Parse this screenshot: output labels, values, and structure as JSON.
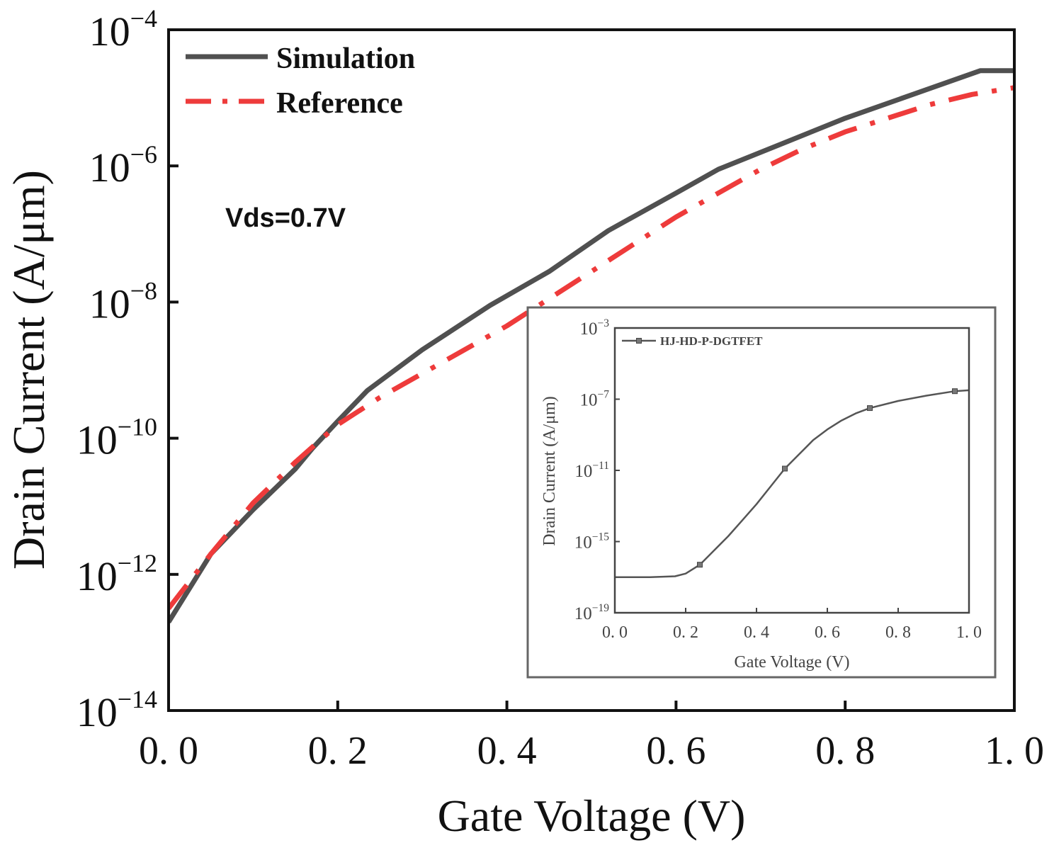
{
  "chart_data": [
    {
      "type": "line",
      "title": "",
      "xlabel": "Gate Voltage (V)",
      "ylabel": "Drain Current (A/μm)",
      "xlim": [
        0.0,
        1.0
      ],
      "ylim_log10": [
        -14,
        -4
      ],
      "xticks": [
        "0. 0",
        "0. 2",
        "0. 4",
        "0. 6",
        "0. 8",
        "1. 0"
      ],
      "xtick_values": [
        0.0,
        0.2,
        0.4,
        0.6,
        0.8,
        1.0
      ],
      "yticks": [
        {
          "base": "10",
          "exp": "−14",
          "log": -14
        },
        {
          "base": "10",
          "exp": "−12",
          "log": -12
        },
        {
          "base": "10",
          "exp": "−10",
          "log": -10
        },
        {
          "base": "10",
          "exp": "−8",
          "log": -8
        },
        {
          "base": "10",
          "exp": "−6",
          "log": -6
        },
        {
          "base": "10",
          "exp": "−4",
          "log": -4
        }
      ],
      "annotation": "Vds=0.7V",
      "legend_position": "top-left",
      "series": [
        {
          "name": "Simulation",
          "color": "#505050",
          "style": "solid",
          "x": [
            0.0,
            0.05,
            0.1,
            0.15,
            0.17,
            0.2,
            0.235,
            0.3,
            0.38,
            0.45,
            0.52,
            0.6,
            0.65,
            0.73,
            0.8,
            0.88,
            0.96,
            1.0
          ],
          "log10_y": [
            -12.7,
            -11.7,
            -11.05,
            -10.45,
            -10.15,
            -9.75,
            -9.3,
            -8.7,
            -8.05,
            -7.55,
            -6.95,
            -6.4,
            -6.05,
            -5.65,
            -5.3,
            -4.95,
            -4.6,
            -4.6
          ]
        },
        {
          "name": "Reference",
          "color": "#ee3b3b",
          "style": "dash-dot",
          "x": [
            0.0,
            0.05,
            0.1,
            0.15,
            0.2,
            0.25,
            0.3,
            0.35,
            0.4,
            0.45,
            0.5,
            0.55,
            0.6,
            0.65,
            0.7,
            0.75,
            0.8,
            0.85,
            0.9,
            0.95,
            1.0
          ],
          "log10_y": [
            -12.5,
            -11.7,
            -10.95,
            -10.35,
            -9.8,
            -9.4,
            -9.05,
            -8.7,
            -8.35,
            -7.95,
            -7.55,
            -7.15,
            -6.75,
            -6.4,
            -6.05,
            -5.75,
            -5.5,
            -5.3,
            -5.1,
            -4.95,
            -4.85
          ]
        }
      ]
    },
    {
      "type": "line",
      "title": "",
      "xlabel": "Gate Voltage (V)",
      "ylabel": "Drain Current (A/μm)",
      "xlim": [
        0.0,
        1.0
      ],
      "ylim_log10": [
        -19,
        -3
      ],
      "xticks": [
        "0. 0",
        "0. 2",
        "0. 4",
        "0. 6",
        "0. 8",
        "1. 0"
      ],
      "xtick_values": [
        0.0,
        0.2,
        0.4,
        0.6,
        0.8,
        1.0
      ],
      "yticks": [
        {
          "base": "10",
          "exp": "−19",
          "log": -19
        },
        {
          "base": "10",
          "exp": "−15",
          "log": -15
        },
        {
          "base": "10",
          "exp": "−11",
          "log": -11
        },
        {
          "base": "10",
          "exp": "−7",
          "log": -7
        },
        {
          "base": "10",
          "exp": "−3",
          "log": -3
        }
      ],
      "legend_position": "top-left",
      "series": [
        {
          "name": "HJ-HD-P-DGTFET",
          "color": "#555555",
          "style": "solid",
          "markers_x": [
            0.24,
            0.48,
            0.72,
            0.96
          ],
          "x": [
            0.0,
            0.1,
            0.17,
            0.2,
            0.24,
            0.28,
            0.32,
            0.36,
            0.4,
            0.44,
            0.48,
            0.52,
            0.56,
            0.6,
            0.64,
            0.68,
            0.72,
            0.8,
            0.88,
            0.96,
            1.0
          ],
          "log10_y": [
            -17.0,
            -17.0,
            -16.95,
            -16.8,
            -16.3,
            -15.5,
            -14.7,
            -13.8,
            -12.9,
            -11.9,
            -10.9,
            -10.1,
            -9.3,
            -8.7,
            -8.2,
            -7.8,
            -7.5,
            -7.1,
            -6.8,
            -6.55,
            -6.5
          ]
        }
      ]
    }
  ]
}
